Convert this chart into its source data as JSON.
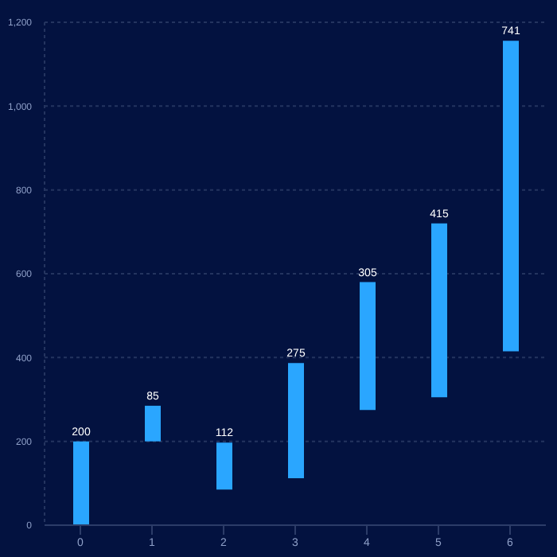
{
  "chart_data": {
    "type": "bar",
    "categories": [
      "0",
      "1",
      "2",
      "3",
      "4",
      "5",
      "6"
    ],
    "values": [
      200,
      85,
      112,
      275,
      305,
      415,
      741
    ],
    "base": [
      0,
      200,
      85,
      112,
      275,
      305,
      415
    ],
    "color": "#2aa6ff",
    "data_labels": true,
    "grid": "y",
    "ylim": [
      0,
      1200
    ],
    "yticks": [
      0,
      200,
      400,
      600,
      800,
      {
        "value": 1000,
        "label": "1,000"
      },
      {
        "value": 1200,
        "label": "1,200"
      }
    ]
  }
}
